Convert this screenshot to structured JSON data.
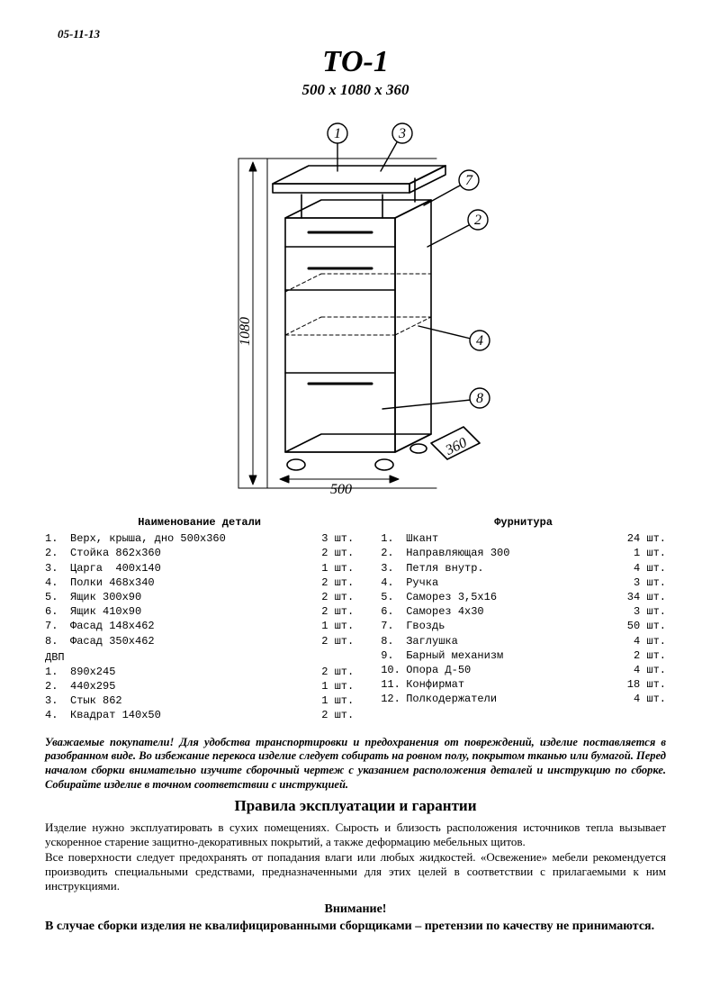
{
  "doc": {
    "date": "05-11-13",
    "model": "ТО-1",
    "dimensions": "500 x 1080 x 360"
  },
  "drawing": {
    "width_label": "500",
    "height_label": "1080",
    "depth_label": "360",
    "callouts": [
      "1",
      "2",
      "3",
      "4",
      "7",
      "8"
    ],
    "stroke": "#000000",
    "bg": "#ffffff",
    "fontFamily": "cursive",
    "fontStyle": "italic"
  },
  "parts": {
    "header": "Наименование  детали",
    "items": [
      {
        "n": "1.",
        "name": "Верх, крыша, дно 500х360",
        "qty": "3 шт."
      },
      {
        "n": "2.",
        "name": "Стойка 862х360",
        "qty": "2 шт."
      },
      {
        "n": "3.",
        "name": "Царга  400х140",
        "qty": "1 шт."
      },
      {
        "n": "4.",
        "name": "Полки 468х340",
        "qty": "2 шт."
      },
      {
        "n": "5.",
        "name": "Ящик 300х90",
        "qty": "2 шт."
      },
      {
        "n": "6.",
        "name": "Ящик 410х90",
        "qty": "2 шт."
      },
      {
        "n": "7.",
        "name": "Фасад 148х462",
        "qty": "1 шт."
      },
      {
        "n": "8.",
        "name": "Фасад 350х462",
        "qty": "2 шт."
      }
    ],
    "sub_header": "ДВП",
    "sub_items": [
      {
        "n": "1.",
        "name": "890х245",
        "qty": "2 шт."
      },
      {
        "n": "2.",
        "name": "440х295",
        "qty": "1 шт."
      },
      {
        "n": "3.",
        "name": "Стык 862",
        "qty": "1 шт."
      },
      {
        "n": "4.",
        "name": "Квадрат 140х50",
        "qty": "2 шт."
      }
    ]
  },
  "hardware": {
    "header": "Фурнитура",
    "items": [
      {
        "n": "1.",
        "name": "Шкант",
        "qty": "24 шт."
      },
      {
        "n": "2.",
        "name": "Направляющая 300",
        "qty": "1 шт."
      },
      {
        "n": "3.",
        "name": "Петля внутр.",
        "qty": "4 шт."
      },
      {
        "n": "4.",
        "name": "Ручка",
        "qty": "3 шт."
      },
      {
        "n": "5.",
        "name": "Саморез 3,5х16",
        "qty": "34 шт."
      },
      {
        "n": "6.",
        "name": "Саморез 4х30",
        "qty": "3 шт."
      },
      {
        "n": "7.",
        "name": "Гвоздь",
        "qty": "50 шт."
      },
      {
        "n": "8.",
        "name": "Заглушка",
        "qty": "4 шт."
      },
      {
        "n": "9.",
        "name": "Барный механизм",
        "qty": "2 шт."
      },
      {
        "n": "10.",
        "name": "Опора Д-50",
        "qty": "4 шт."
      },
      {
        "n": "11.",
        "name": "Конфирмат",
        "qty": "18 шт."
      },
      {
        "n": "12.",
        "name": "Полкодержатели",
        "qty": "4 шт."
      }
    ]
  },
  "note": "Уважаемые покупатели! Для удобства транспортировки и предохранения от повреждений, изделие поставляется в разобранном виде. Во избежание перекоса изделие следует собирать на ровном полу, покрытом тканью или бумагой. Перед началом сборки внимательно изучите сборочный чертеж с указанием расположения деталей и инструкцию по сборке. Собирайте изделие в точном соответствии с инструкцией.",
  "rules_header": "Правила эксплуатации и гарантии",
  "rules": "Изделие нужно эксплуатировать в сухих помещениях. Сырость и близость расположения источников тепла вызывает ускоренное старение защитно-декоративных покрытий, а также деформацию мебельных щитов.\nВсе поверхности следует предохранять от попадания влаги или любых жидкостей. «Освежение» мебели рекомендуется производить специальными средствами, предназначенными для этих целей в соответствии с прилагаемыми к ним инструкциями.",
  "attn_header": "Внимание!",
  "attn": "В случае сборки изделия не квалифицированными сборщиками – претензии по качеству не принимаются."
}
